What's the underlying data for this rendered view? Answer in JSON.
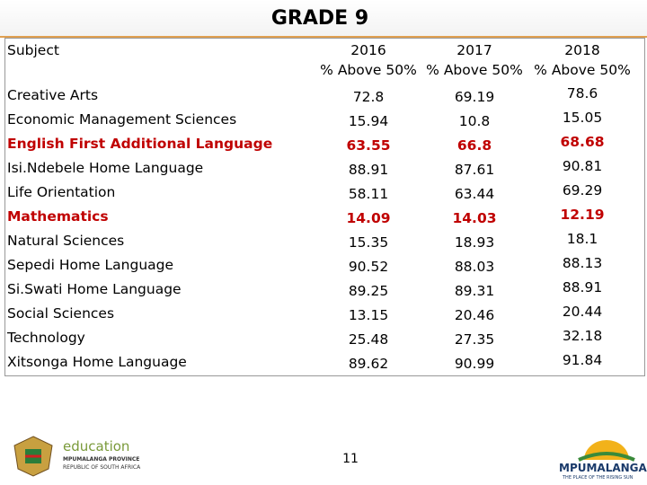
{
  "header": {
    "title": "GRADE 9"
  },
  "table": {
    "subject_header": "Subject",
    "years": [
      "2016",
      "2017",
      "2018"
    ],
    "subheaders": [
      "% Above 50%",
      "% Above 50%",
      "% Above 50%"
    ],
    "rows": [
      {
        "subject": "Creative Arts",
        "values": [
          72.8,
          69.19,
          78.6
        ]
      },
      {
        "subject": "Economic Management Sciences",
        "values": [
          15.94,
          10.8,
          15.05
        ]
      },
      {
        "subject": "English First Additional Language",
        "values": [
          63.55,
          66.8,
          68.68
        ],
        "color": "#c00000"
      },
      {
        "subject": "Isi.Ndebele Home Language",
        "values": [
          88.91,
          87.61,
          90.81
        ]
      },
      {
        "subject": "Life Orientation",
        "values": [
          58.11,
          63.44,
          69.29
        ]
      },
      {
        "subject": "Mathematics",
        "values": [
          14.09,
          14.03,
          12.19
        ],
        "color": "#c00000"
      },
      {
        "subject": "Natural Sciences",
        "values": [
          15.35,
          18.93,
          18.1
        ]
      },
      {
        "subject": "Sepedi Home Language",
        "values": [
          90.52,
          88.03,
          88.13
        ]
      },
      {
        "subject": "Si.Swati Home Language",
        "values": [
          89.25,
          89.31,
          88.91
        ]
      },
      {
        "subject": "Social Sciences",
        "values": [
          13.15,
          20.46,
          20.44
        ]
      },
      {
        "subject": "Technology",
        "values": [
          25.48,
          27.35,
          32.18
        ]
      },
      {
        "subject": "Xitsonga Home Language",
        "values": [
          89.62,
          90.99,
          91.84
        ]
      }
    ]
  },
  "footer": {
    "page_number": "11",
    "left_logo": {
      "name": "education",
      "line1": "MPUMALANGA PROVINCE",
      "line2": "REPUBLIC OF SOUTH AFRICA"
    },
    "right_logo": {
      "name": "MPUMALANGA",
      "tagline": "THE PLACE OF THE RISING SUN"
    }
  }
}
